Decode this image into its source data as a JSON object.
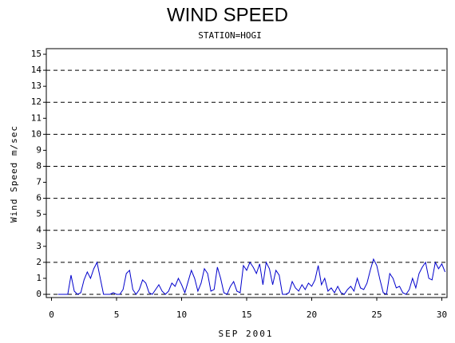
{
  "chart_data": {
    "type": "line",
    "title": "WIND SPEED",
    "subtitle": "STATION=HOGI",
    "x_label": "SEP 2001",
    "y_label": "Wind Speed m/sec",
    "color": "#0000cc",
    "xlim": [
      -0.4,
      30.4
    ],
    "xticks": [
      0,
      5,
      10,
      15,
      20,
      25,
      30
    ],
    "ylim": [
      -0.2,
      15.35
    ],
    "yticks": [
      0,
      1,
      2,
      3,
      4,
      5,
      6,
      7,
      8,
      9,
      10,
      11,
      12,
      13,
      14,
      15
    ],
    "grid_lines": [
      0,
      2,
      4,
      6,
      8,
      10,
      12,
      14
    ],
    "x": [
      0.5,
      0.75,
      1,
      1.25,
      1.5,
      1.75,
      2,
      2.25,
      2.5,
      2.75,
      3,
      3.25,
      3.5,
      3.75,
      4,
      4.25,
      4.5,
      4.75,
      5,
      5.25,
      5.5,
      5.75,
      6,
      6.25,
      6.5,
      6.75,
      7,
      7.25,
      7.5,
      7.75,
      8,
      8.25,
      8.5,
      8.75,
      9,
      9.25,
      9.5,
      9.75,
      10,
      10.25,
      10.5,
      10.75,
      11,
      11.25,
      11.5,
      11.75,
      12,
      12.25,
      12.5,
      12.75,
      13,
      13.25,
      13.5,
      13.75,
      14,
      14.25,
      14.5,
      14.75,
      15,
      15.25,
      15.5,
      15.75,
      16,
      16.25,
      16.5,
      16.75,
      17,
      17.25,
      17.5,
      17.75,
      18,
      18.25,
      18.5,
      18.75,
      19,
      19.25,
      19.5,
      19.75,
      20,
      20.25,
      20.5,
      20.75,
      21,
      21.25,
      21.5,
      21.75,
      22,
      22.25,
      22.5,
      22.75,
      23,
      23.25,
      23.5,
      23.75,
      24,
      24.25,
      24.5,
      24.75,
      25,
      25.25,
      25.5,
      25.75,
      26,
      26.25,
      26.5,
      26.75,
      27,
      27.25,
      27.5,
      27.75,
      28,
      28.25,
      28.5,
      28.75,
      29,
      29.25,
      29.5,
      29.75,
      30,
      30.25
    ],
    "values": [
      0,
      0,
      0,
      0,
      1.2,
      0.2,
      0,
      0.1,
      0.9,
      1.4,
      1,
      1.6,
      2,
      1,
      0,
      0,
      0,
      0.1,
      0,
      0,
      0.3,
      1.3,
      1.5,
      0.3,
      0,
      0.3,
      0.9,
      0.7,
      0.1,
      0,
      0.3,
      0.6,
      0.2,
      0,
      0.2,
      0.7,
      0.5,
      1,
      0.6,
      0.1,
      0.8,
      1.5,
      1,
      0.2,
      0.7,
      1.6,
      1.3,
      0.2,
      0.3,
      1.7,
      1,
      0.1,
      0,
      0.5,
      0.8,
      0.2,
      0.1,
      1.8,
      1.5,
      2,
      1.7,
      1.3,
      1.9,
      0.6,
      2,
      1.6,
      0.6,
      1.5,
      1.2,
      0,
      0,
      0.1,
      0.8,
      0.4,
      0.2,
      0.6,
      0.3,
      0.7,
      0.5,
      0.9,
      1.8,
      0.6,
      1,
      0.2,
      0.4,
      0.1,
      0.5,
      0.1,
      0,
      0.3,
      0.5,
      0.2,
      1,
      0.4,
      0.3,
      0.7,
      1.5,
      2.2,
      1.8,
      0.9,
      0.1,
      0,
      1.3,
      1,
      0.4,
      0.5,
      0.1,
      0,
      0.3,
      1,
      0.4,
      1.3,
      1.7,
      2,
      1,
      0.9,
      2,
      1.6,
      1.9,
      1.4
    ]
  }
}
